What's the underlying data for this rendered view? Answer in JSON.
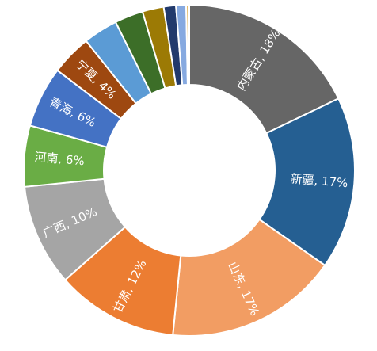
{
  "chart_data": {
    "type": "pie",
    "variant": "donut",
    "start_angle_deg": 0,
    "direction": "clockwise",
    "slices": [
      {
        "label": "内蒙古, 18%",
        "name": "内蒙古",
        "value": 18,
        "color": "#666666"
      },
      {
        "label": "新疆, 17%",
        "name": "新疆",
        "value": 17,
        "color": "#255f92"
      },
      {
        "label": "山东, 17%",
        "name": "山东",
        "value": 17,
        "color": "#f29d63"
      },
      {
        "label": "甘肃, 12%",
        "name": "甘肃",
        "value": 12,
        "color": "#ec7d32"
      },
      {
        "label": "广西, 10%",
        "name": "广西",
        "value": 10,
        "color": "#a5a5a5"
      },
      {
        "label": "河南, 6%",
        "name": "河南",
        "value": 6,
        "color": "#6aad45"
      },
      {
        "label": "青海, 6%",
        "name": "青海",
        "value": 6,
        "color": "#4472c4"
      },
      {
        "label": "宁夏, 4%",
        "name": "宁夏",
        "value": 4,
        "color": "#9e4810"
      },
      {
        "label": "",
        "name": "",
        "value": 3.4,
        "color": "#5b9bd5"
      },
      {
        "label": "",
        "name": "",
        "value": 2.8,
        "color": "#3c6e28"
      },
      {
        "label": "",
        "name": "",
        "value": 2.1,
        "color": "#9c7a05"
      },
      {
        "label": "",
        "name": "",
        "value": 1.2,
        "color": "#223a6c"
      },
      {
        "label": "",
        "name": "",
        "value": 1.0,
        "color": "#86a9e0"
      },
      {
        "label": "",
        "name": "",
        "value": 0.3,
        "color": "#e0b050"
      }
    ]
  }
}
